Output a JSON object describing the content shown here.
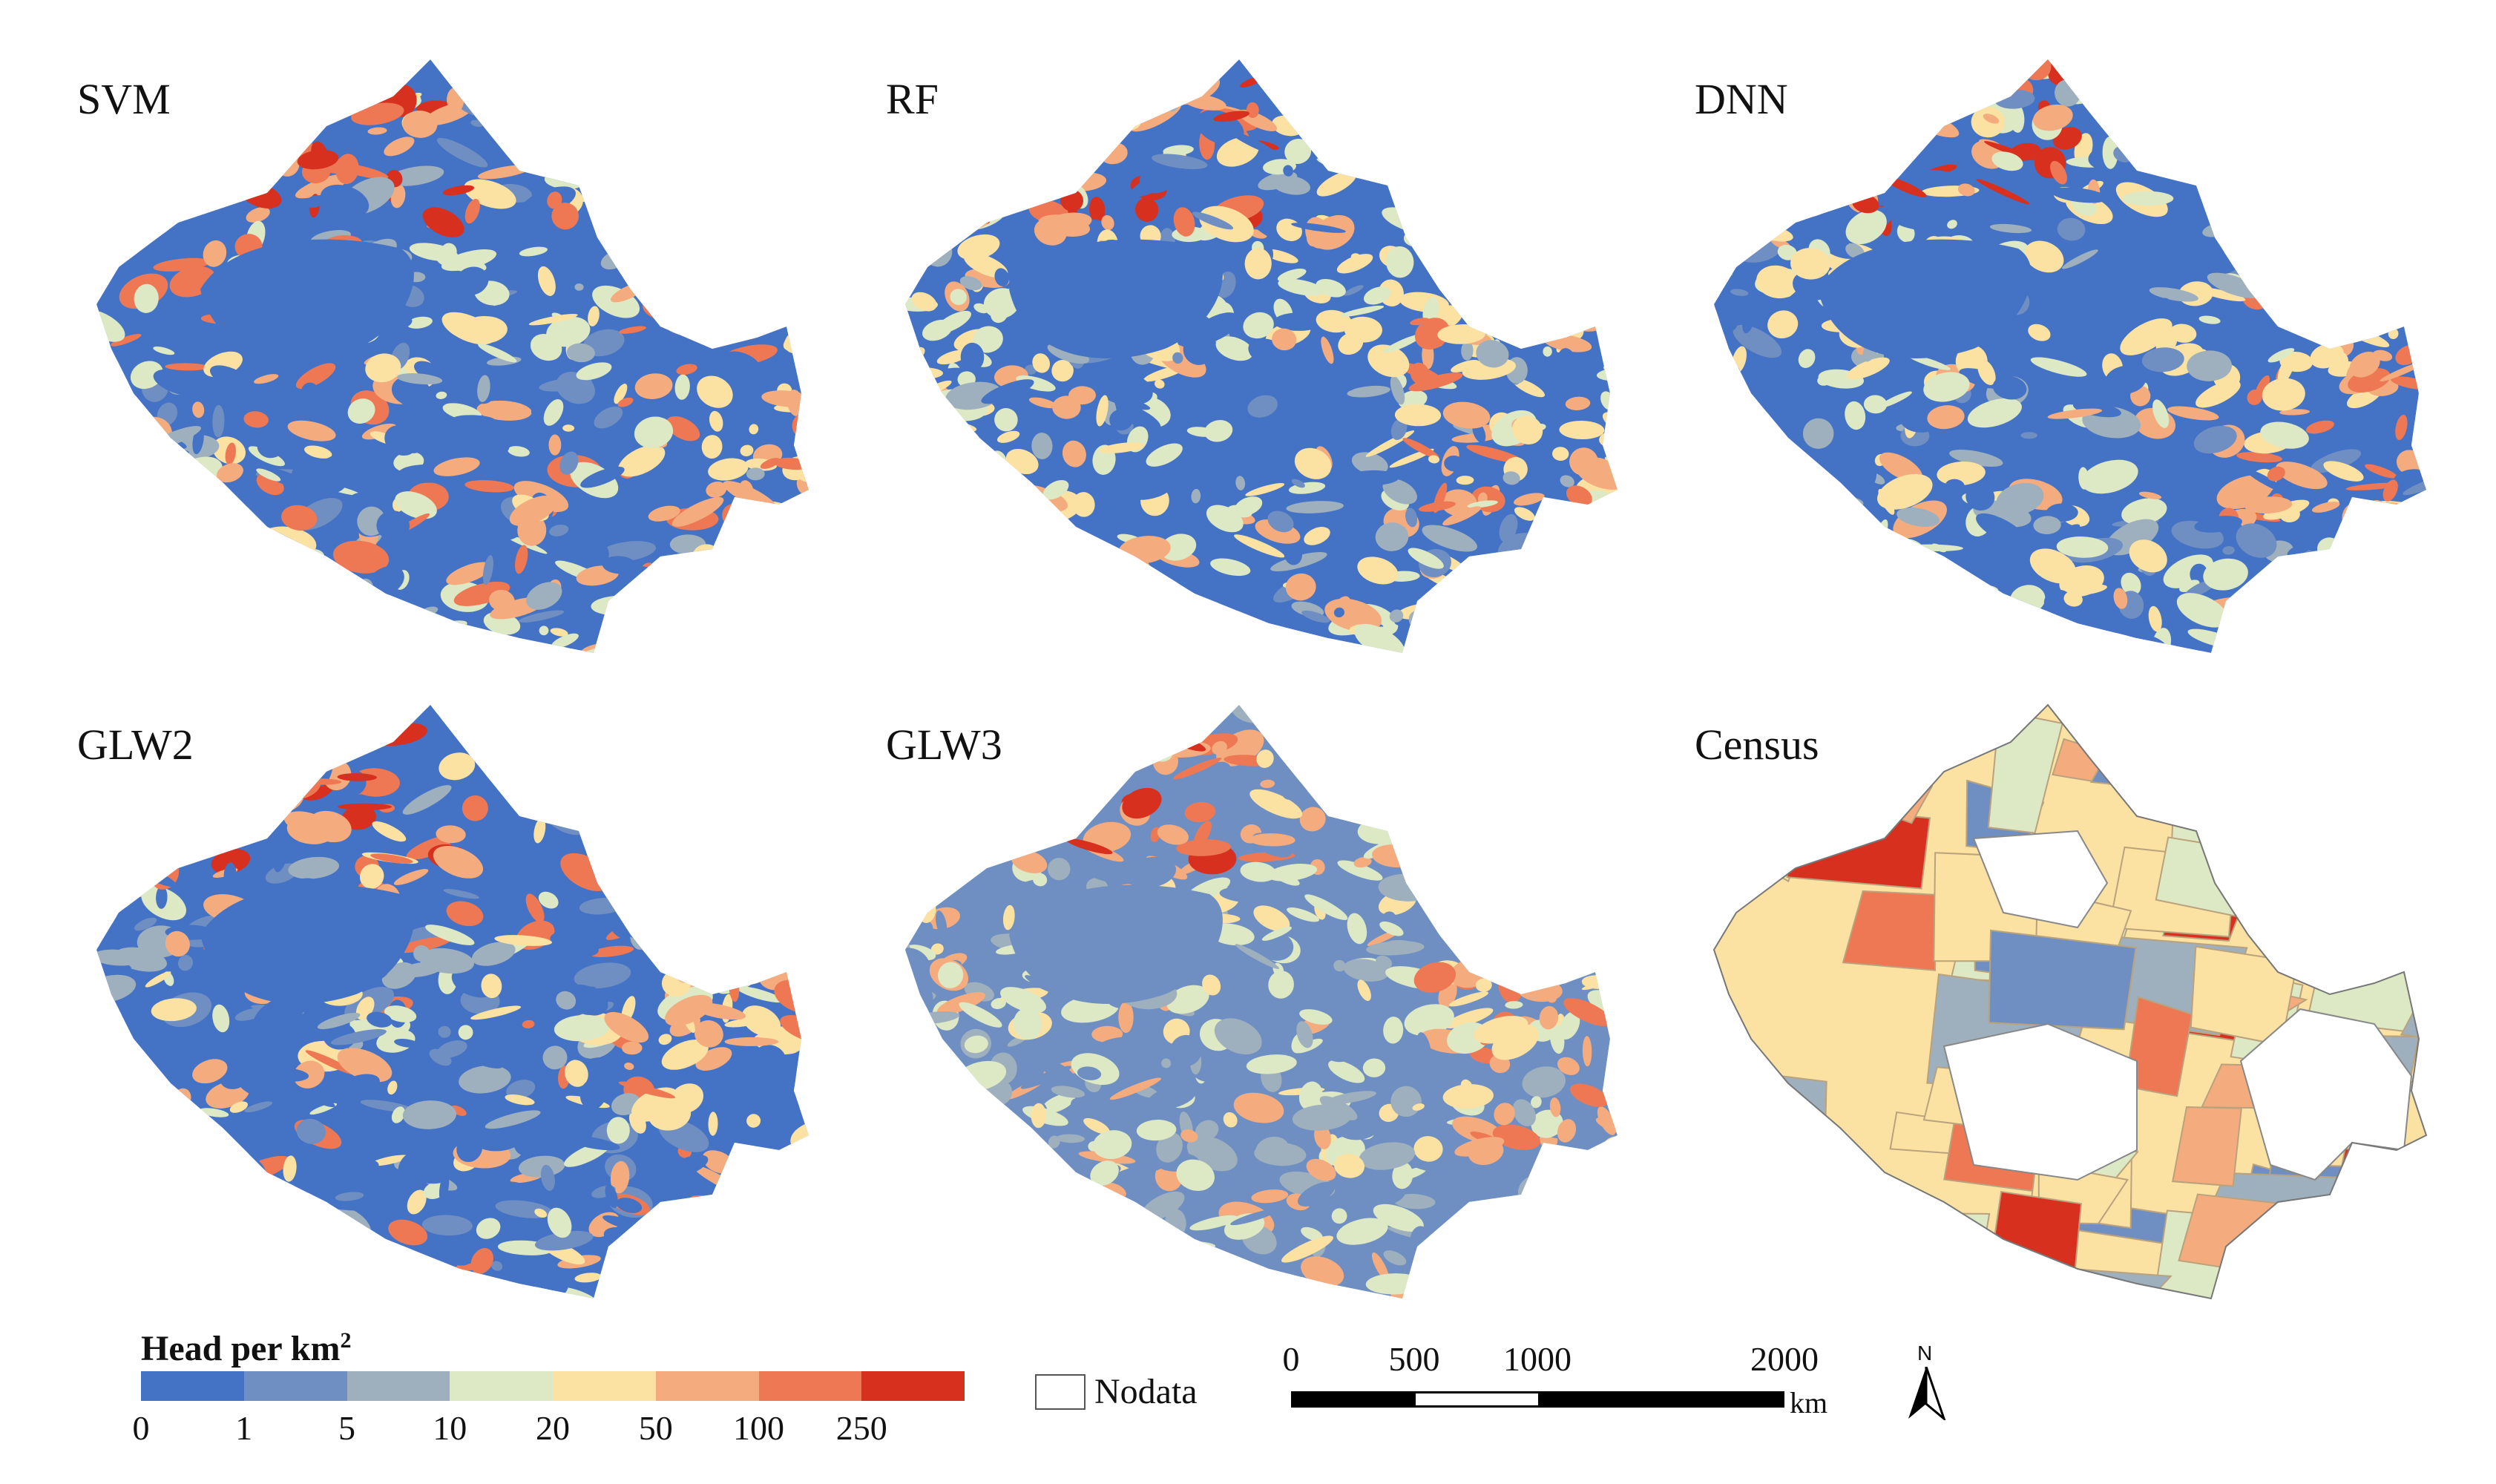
{
  "figure": {
    "panels": [
      {
        "label": "SVM",
        "source": "model"
      },
      {
        "label": "RF",
        "source": "model"
      },
      {
        "label": "DNN",
        "source": "model"
      },
      {
        "label": "GLW2",
        "source": "model"
      },
      {
        "label": "GLW3",
        "source": "model"
      },
      {
        "label": "Census",
        "source": "census"
      }
    ]
  },
  "legend": {
    "title": "Head per km",
    "title_sup": "2",
    "colors": [
      "#4472c4",
      "#6f8fc2",
      "#9eb0bd",
      "#dde8c4",
      "#fbe2a3",
      "#f4ac7f",
      "#ed7853",
      "#d7301f"
    ],
    "ticks": [
      "0",
      "1",
      "5",
      "10",
      "20",
      "50",
      "100",
      "250"
    ]
  },
  "nodata": {
    "label": "Nodata"
  },
  "scalebar": {
    "ticks": [
      "0",
      "500",
      "1000",
      "2000"
    ],
    "unit": "km"
  },
  "north_arrow": {
    "label": "N",
    "icon": "north-arrow-icon"
  }
}
